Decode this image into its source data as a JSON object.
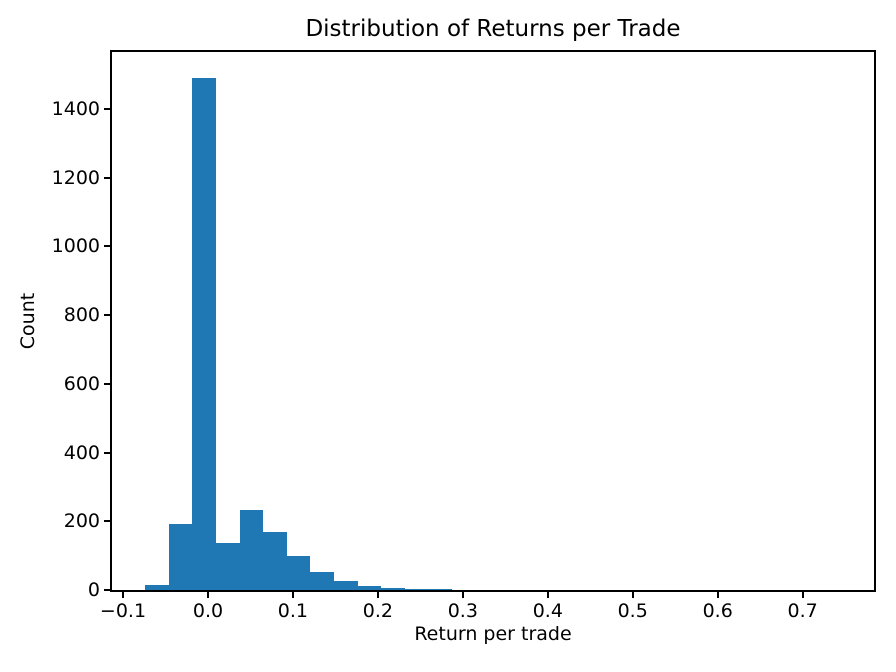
{
  "chart_data": {
    "type": "bar",
    "subtype": "histogram",
    "title": "Distribution of Returns per Trade",
    "xlabel": "Return per trade",
    "ylabel": "Count",
    "bar_color": "#1f77b4",
    "axis_color": "#000000",
    "background_color": "#ffffff",
    "grid": false,
    "legend": null,
    "bin_start": -0.074,
    "bin_width": 0.0278,
    "counts": [
      15,
      193,
      1490,
      136,
      232,
      168,
      100,
      52,
      27,
      11,
      7,
      3,
      2
    ],
    "xlim": [
      -0.113,
      0.784
    ],
    "ylim": [
      0,
      1565
    ],
    "x_ticks": [
      {
        "value": -0.1,
        "label": "−0.1"
      },
      {
        "value": 0.0,
        "label": "0.0"
      },
      {
        "value": 0.1,
        "label": "0.1"
      },
      {
        "value": 0.2,
        "label": "0.2"
      },
      {
        "value": 0.3,
        "label": "0.3"
      },
      {
        "value": 0.4,
        "label": "0.4"
      },
      {
        "value": 0.5,
        "label": "0.5"
      },
      {
        "value": 0.6,
        "label": "0.6"
      },
      {
        "value": 0.7,
        "label": "0.7"
      }
    ],
    "y_ticks": [
      {
        "value": 0,
        "label": "0"
      },
      {
        "value": 200,
        "label": "200"
      },
      {
        "value": 400,
        "label": "400"
      },
      {
        "value": 600,
        "label": "600"
      },
      {
        "value": 800,
        "label": "800"
      },
      {
        "value": 1000,
        "label": "1000"
      },
      {
        "value": 1200,
        "label": "1200"
      },
      {
        "value": 1400,
        "label": "1400"
      }
    ]
  }
}
